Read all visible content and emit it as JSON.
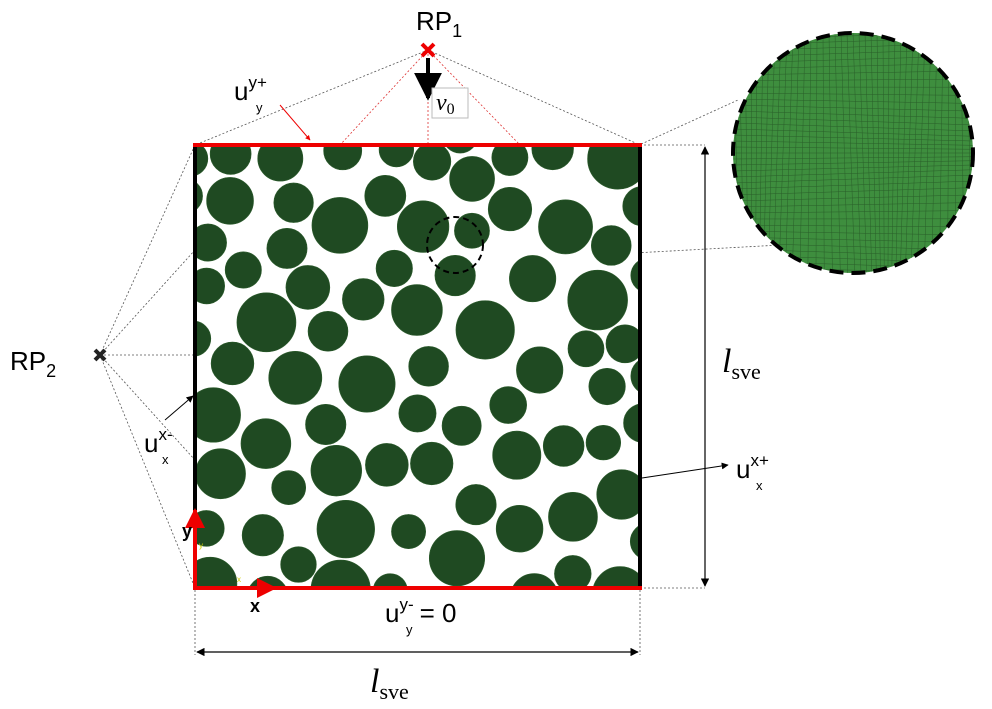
{
  "reference_points": [
    {
      "name": "RP",
      "index": "1"
    },
    {
      "name": "RP",
      "index": "2"
    }
  ],
  "velocity": {
    "symbol": "v",
    "subscript": "0"
  },
  "displacements": [
    {
      "symbol": "u",
      "superscript": "y+",
      "subscript": "y"
    },
    {
      "symbol": "u",
      "superscript": "x-",
      "subscript": "x"
    },
    {
      "symbol": "u",
      "superscript": "x+",
      "subscript": "x"
    },
    {
      "symbol": "u",
      "superscript": "y-",
      "subscript": "y",
      "suffix": "= 0"
    }
  ],
  "dimensions": [
    {
      "symbol": "l",
      "subscript": "sve"
    },
    {
      "symbol": "l",
      "subscript": "sve"
    }
  ],
  "axes": {
    "x": "x",
    "y": "y"
  },
  "axes_triad": {
    "x": "x",
    "y": "y"
  }
}
